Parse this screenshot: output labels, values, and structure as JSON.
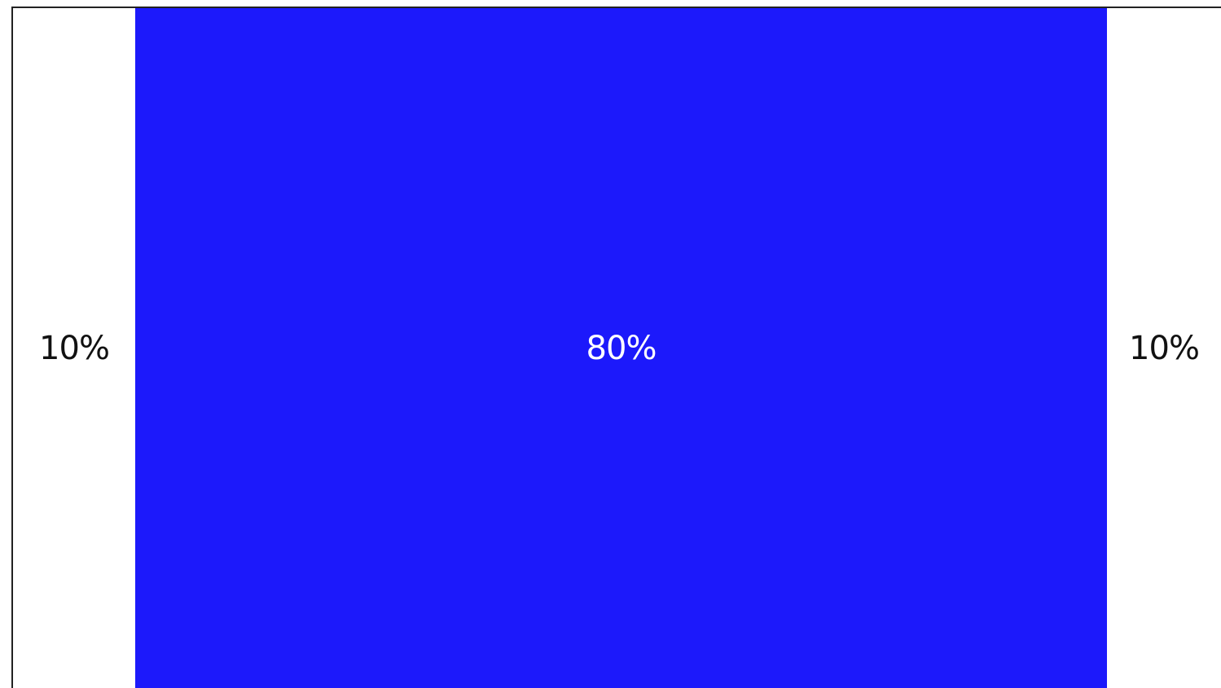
{
  "layout_split": {
    "segments": [
      {
        "label": "10%",
        "value": 10,
        "color": "#ffffff",
        "text_color": "#111111"
      },
      {
        "label": "80%",
        "value": 80,
        "color": "#1c19fb",
        "text_color": "#ffffff"
      },
      {
        "label": "10%",
        "value": 10,
        "color": "#ffffff",
        "text_color": "#111111"
      }
    ]
  }
}
